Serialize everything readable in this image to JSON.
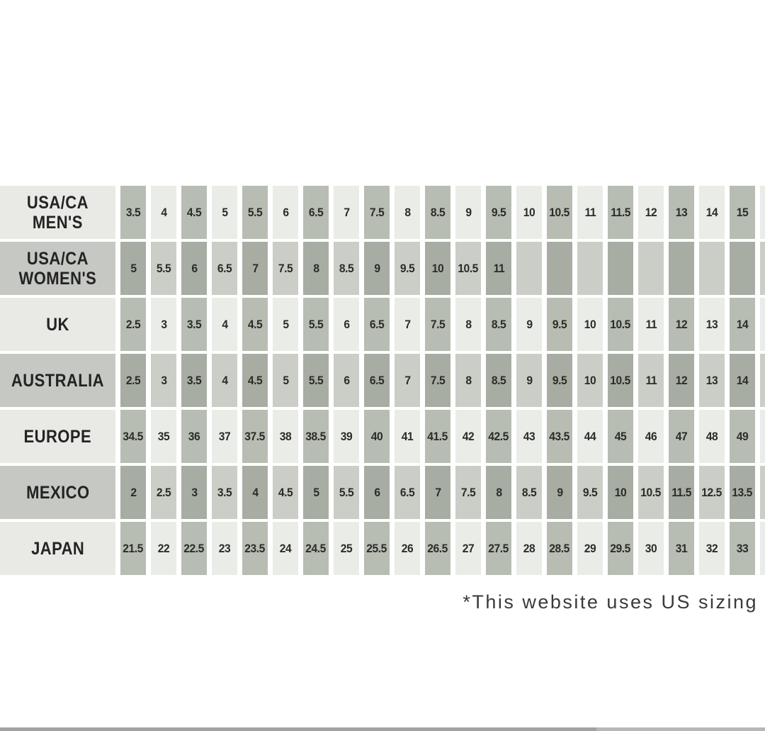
{
  "chart_data": {
    "type": "table",
    "columns_per_row": 22,
    "rows": [
      {
        "id": "usa-ca-mens",
        "label_lines": [
          "USA/CA",
          "MEN'S"
        ],
        "values": [
          "3.5",
          "4",
          "4.5",
          "5",
          "5.5",
          "6",
          "6.5",
          "7",
          "7.5",
          "8",
          "8.5",
          "9",
          "9.5",
          "10",
          "10.5",
          "11",
          "11.5",
          "12",
          "13",
          "14",
          "15",
          ""
        ]
      },
      {
        "id": "usa-ca-womens",
        "label_lines": [
          "USA/CA",
          "WOMEN'S"
        ],
        "values": [
          "5",
          "5.5",
          "6",
          "6.5",
          "7",
          "7.5",
          "8",
          "8.5",
          "9",
          "9.5",
          "10",
          "10.5",
          "11",
          "",
          "",
          "",
          "",
          "",
          "",
          "",
          "",
          ""
        ]
      },
      {
        "id": "uk",
        "label_lines": [
          "UK"
        ],
        "values": [
          "2.5",
          "3",
          "3.5",
          "4",
          "4.5",
          "5",
          "5.5",
          "6",
          "6.5",
          "7",
          "7.5",
          "8",
          "8.5",
          "9",
          "9.5",
          "10",
          "10.5",
          "11",
          "12",
          "13",
          "14",
          ""
        ]
      },
      {
        "id": "australia",
        "label_lines": [
          "AUSTRALIA"
        ],
        "values": [
          "2.5",
          "3",
          "3.5",
          "4",
          "4.5",
          "5",
          "5.5",
          "6",
          "6.5",
          "7",
          "7.5",
          "8",
          "8.5",
          "9",
          "9.5",
          "10",
          "10.5",
          "11",
          "12",
          "13",
          "14",
          ""
        ]
      },
      {
        "id": "europe",
        "label_lines": [
          "EUROPE"
        ],
        "values": [
          "34.5",
          "35",
          "36",
          "37",
          "37.5",
          "38",
          "38.5",
          "39",
          "40",
          "41",
          "41.5",
          "42",
          "42.5",
          "43",
          "43.5",
          "44",
          "45",
          "46",
          "47",
          "48",
          "49",
          ""
        ]
      },
      {
        "id": "mexico",
        "label_lines": [
          "MEXICO"
        ],
        "values": [
          "2",
          "2.5",
          "3",
          "3.5",
          "4",
          "4.5",
          "5",
          "5.5",
          "6",
          "6.5",
          "7",
          "7.5",
          "8",
          "8.5",
          "9",
          "9.5",
          "10",
          "10.5",
          "11.5",
          "12.5",
          "13.5",
          ""
        ]
      },
      {
        "id": "japan",
        "label_lines": [
          "JAPAN"
        ],
        "values": [
          "21.5",
          "22",
          "22.5",
          "23",
          "23.5",
          "24",
          "24.5",
          "25",
          "25.5",
          "26",
          "26.5",
          "27",
          "27.5",
          "28",
          "28.5",
          "29",
          "29.5",
          "30",
          "31",
          "32",
          "33",
          ""
        ]
      }
    ],
    "footnote": "*This website uses US sizing"
  },
  "colors": {
    "light_row_cell_dark": "#b7bdb3",
    "light_row_cell_light": "#eaece8",
    "dark_row_cell_dark": "#a8ada3",
    "dark_row_cell_light": "#cbcec6",
    "header_light_row": "#e9eae6",
    "header_dark_row": "#c6c8c3",
    "cell_text": "#2c2c2a",
    "footnote_text": "#3a3a3a",
    "bottom_bar_track": "#b7b7b7",
    "bottom_bar_fill": "#a2a2a2"
  },
  "bottom_bar": {
    "fill_percent": 78
  }
}
